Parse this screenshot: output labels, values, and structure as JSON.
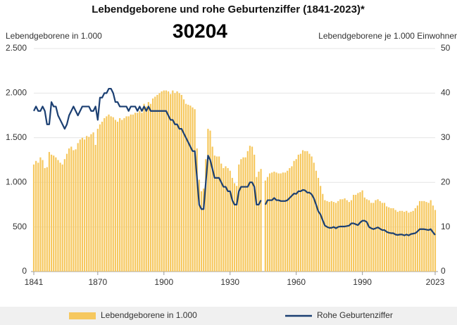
{
  "chart_data": {
    "type": "bar_line",
    "title": "Lebendgeborene und rohe Geburtenziffer (1841-2023)*",
    "annotation": "30204",
    "y_label": "Lebendgeborene in 1.000",
    "y2_label": "Lebendgeborene je 1.000 Einwohner",
    "x": [
      1841,
      1842,
      1843,
      1844,
      1845,
      1846,
      1847,
      1848,
      1849,
      1850,
      1851,
      1852,
      1853,
      1854,
      1855,
      1856,
      1857,
      1858,
      1859,
      1860,
      1861,
      1862,
      1863,
      1864,
      1865,
      1866,
      1867,
      1868,
      1869,
      1870,
      1871,
      1872,
      1873,
      1874,
      1875,
      1876,
      1877,
      1878,
      1879,
      1880,
      1881,
      1882,
      1883,
      1884,
      1885,
      1886,
      1887,
      1888,
      1889,
      1890,
      1891,
      1892,
      1893,
      1894,
      1895,
      1896,
      1897,
      1898,
      1899,
      1900,
      1901,
      1902,
      1903,
      1904,
      1905,
      1906,
      1907,
      1908,
      1909,
      1910,
      1911,
      1912,
      1913,
      1914,
      1915,
      1916,
      1917,
      1918,
      1919,
      1920,
      1921,
      1922,
      1923,
      1924,
      1925,
      1926,
      1927,
      1928,
      1929,
      1930,
      1931,
      1932,
      1933,
      1934,
      1935,
      1936,
      1937,
      1938,
      1939,
      1940,
      1941,
      1942,
      1943,
      1944,
      1945,
      1946,
      1947,
      1948,
      1949,
      1950,
      1951,
      1952,
      1953,
      1954,
      1955,
      1956,
      1957,
      1958,
      1959,
      1960,
      1961,
      1962,
      1963,
      1964,
      1965,
      1966,
      1967,
      1968,
      1969,
      1970,
      1971,
      1972,
      1973,
      1974,
      1975,
      1976,
      1977,
      1978,
      1979,
      1980,
      1981,
      1982,
      1983,
      1984,
      1985,
      1986,
      1987,
      1988,
      1989,
      1990,
      1991,
      1992,
      1993,
      1994,
      1995,
      1996,
      1997,
      1998,
      1999,
      2000,
      2001,
      2002,
      2003,
      2004,
      2005,
      2006,
      2007,
      2008,
      2009,
      2010,
      2011,
      2012,
      2013,
      2014,
      2015,
      2016,
      2017,
      2018,
      2019,
      2020,
      2021,
      2022,
      2023
    ],
    "series": [
      {
        "name": "Lebendgeborene in 1.000",
        "kind": "bar",
        "color": "#f6c85f",
        "values": [
          1200,
          1240,
          1220,
          1280,
          1250,
          1160,
          1170,
          1340,
          1310,
          1300,
          1280,
          1250,
          1220,
          1200,
          1260,
          1320,
          1380,
          1400,
          1360,
          1370,
          1440,
          1480,
          1500,
          1480,
          1520,
          1510,
          1540,
          1560,
          1420,
          1600,
          1650,
          1680,
          1720,
          1740,
          1760,
          1740,
          1730,
          1700,
          1680,
          1720,
          1700,
          1720,
          1740,
          1740,
          1760,
          1760,
          1780,
          1780,
          1800,
          1780,
          1880,
          1850,
          1900,
          1880,
          1940,
          1960,
          1980,
          2000,
          2020,
          2030,
          2030,
          2020,
          1990,
          2030,
          2000,
          2020,
          2000,
          1980,
          1930,
          1880,
          1870,
          1860,
          1840,
          1820,
          1380,
          1030,
          900,
          930,
          1260,
          1600,
          1580,
          1400,
          1300,
          1290,
          1290,
          1210,
          1160,
          1180,
          1160,
          1130,
          1050,
          990,
          960,
          1200,
          1260,
          1280,
          1280,
          1350,
          1410,
          1400,
          1310,
          1060,
          1120,
          1150,
          null,
          1020,
          1060,
          1100,
          1110,
          1120,
          1110,
          1100,
          1100,
          1110,
          1110,
          1130,
          1160,
          1180,
          1240,
          1260,
          1310,
          1320,
          1360,
          1350,
          1350,
          1320,
          1290,
          1220,
          1130,
          1050,
          960,
          870,
          800,
          790,
          780,
          790,
          780,
          770,
          790,
          810,
          810,
          820,
          800,
          780,
          800,
          860,
          860,
          880,
          890,
          910,
          830,
          810,
          800,
          770,
          770,
          800,
          810,
          790,
          770,
          770,
          730,
          720,
          710,
          710,
          690,
          670,
          680,
          680,
          670,
          680,
          660,
          670,
          680,
          710,
          740,
          790,
          790,
          790,
          780,
          770,
          800,
          740,
          690
        ]
      },
      {
        "name": "Rohe Geburtenziffer",
        "kind": "line",
        "axis": "y2",
        "color": "#1b3f72",
        "values": [
          36,
          37,
          36,
          36,
          37,
          36,
          33,
          33,
          38,
          37,
          37,
          35,
          34,
          33,
          32,
          33,
          35,
          36,
          37,
          36,
          35,
          36,
          37,
          37,
          37,
          37,
          36,
          36,
          37,
          34,
          39,
          39,
          40,
          40,
          41,
          41,
          40,
          38,
          38,
          37,
          37,
          37,
          37,
          36,
          37,
          37,
          37,
          36,
          37,
          36,
          37,
          36,
          37,
          36,
          36,
          36,
          36,
          36,
          36,
          36,
          36,
          35,
          34,
          34,
          33,
          33,
          32,
          32,
          31,
          30,
          29,
          28,
          27,
          27,
          21,
          15,
          14,
          14,
          20,
          26,
          25,
          23,
          21,
          21,
          21,
          20,
          19,
          19,
          18,
          18,
          16,
          15,
          15,
          18,
          19,
          19,
          19,
          19,
          20,
          20,
          19,
          15,
          15,
          16,
          null,
          15,
          16,
          16,
          16,
          16.5,
          16,
          16,
          15.8,
          15.8,
          15.8,
          16,
          16.5,
          17,
          17.5,
          17.4,
          18,
          18,
          18.3,
          18.2,
          17.7,
          17.7,
          17.3,
          16.4,
          15,
          13.5,
          12.8,
          11.5,
          10.3,
          10,
          9.8,
          9.8,
          10,
          9.7,
          10,
          10.1,
          10.1,
          10.1,
          10.2,
          10.3,
          10.8,
          10.8,
          10.6,
          10.4,
          11,
          11.4,
          11.4,
          11.1,
          10,
          9.7,
          9.5,
          9.7,
          9.9,
          9.6,
          9.3,
          9.3,
          8.9,
          8.7,
          8.6,
          8.6,
          8.3,
          8.2,
          8.3,
          8.3,
          8.1,
          8.3,
          8.1,
          8.4,
          8.5,
          8.6,
          9,
          9.5,
          9.5,
          9.5,
          9.4,
          9.3,
          9.5,
          8.8,
          8.2
        ]
      }
    ],
    "xlim": [
      1841,
      2023
    ],
    "xticks": [
      1841,
      1870,
      1900,
      1930,
      1960,
      1990,
      2023
    ],
    "ylim": [
      0,
      2500
    ],
    "yticks": [
      0,
      500,
      {
        "value": 1000,
        "label": "1.000"
      },
      {
        "value": 1500,
        "label": "1.500"
      },
      {
        "value": 2000,
        "label": "2.000"
      },
      {
        "value": 2500,
        "label": "2.500"
      }
    ],
    "y2lim": [
      0,
      50
    ],
    "y2ticks": [
      0,
      10,
      20,
      30,
      40,
      50
    ],
    "grid": true,
    "legend": "bottom"
  }
}
